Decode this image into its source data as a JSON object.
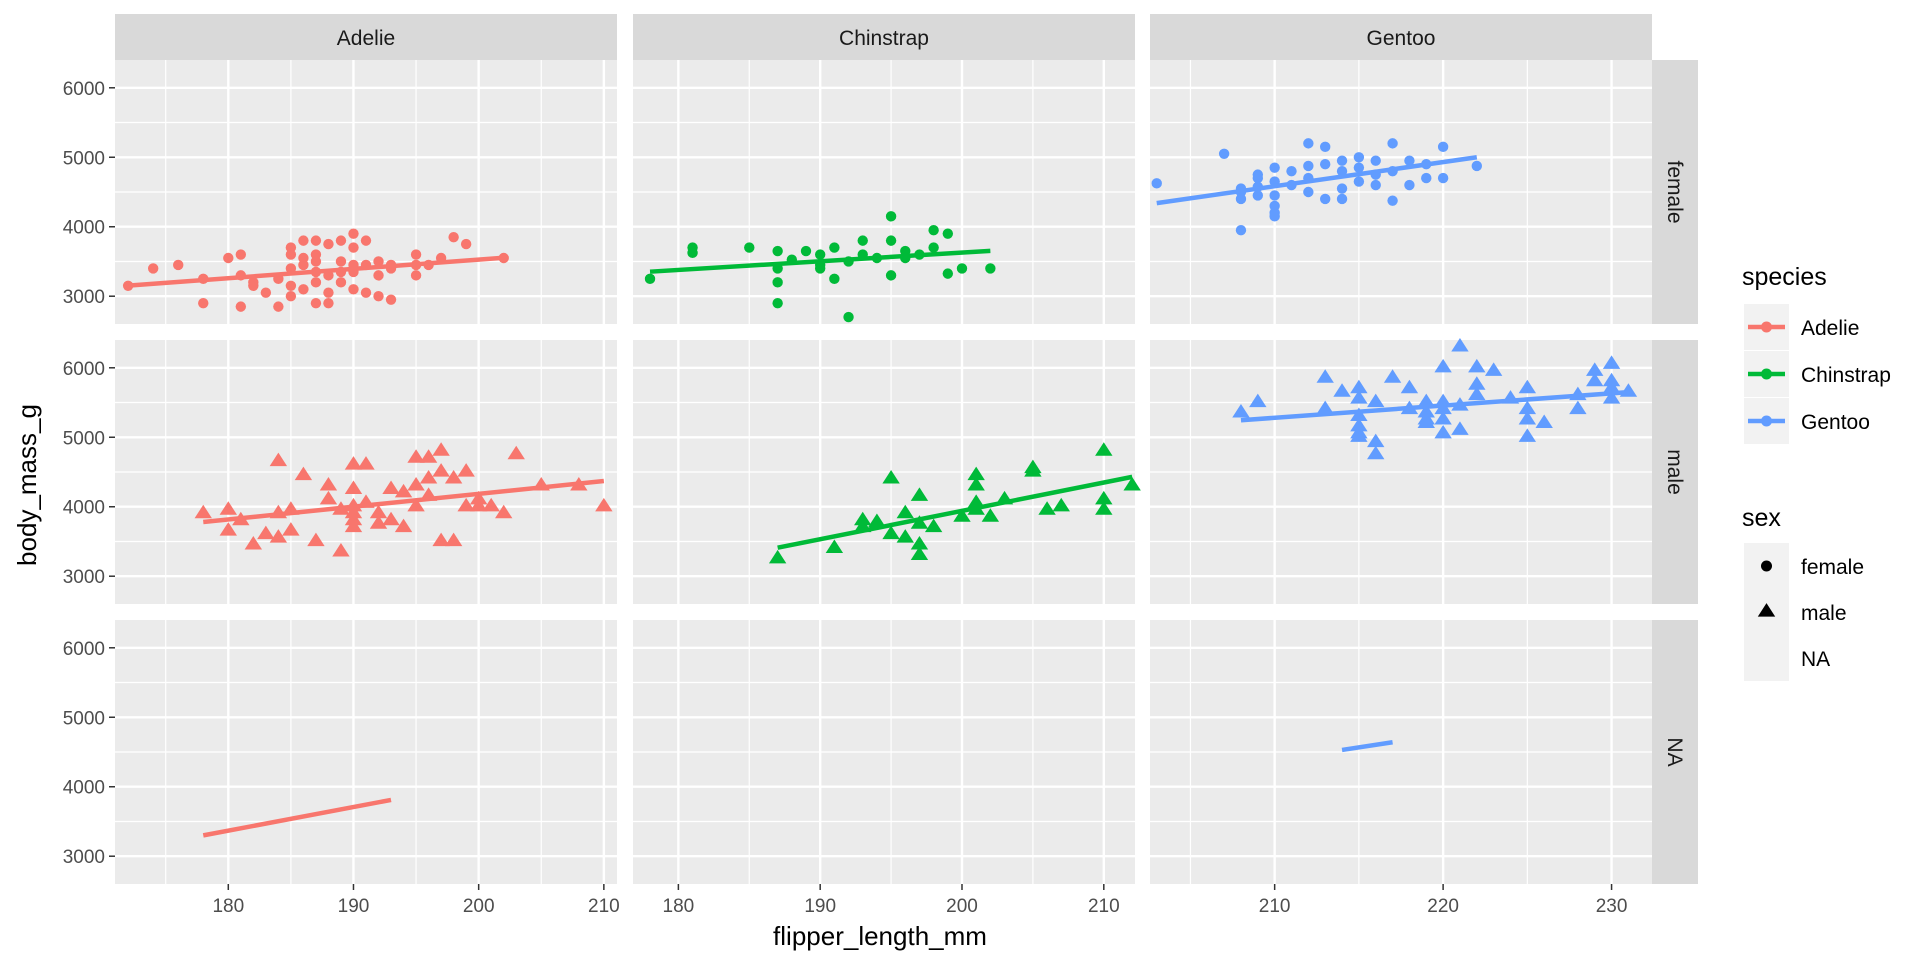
{
  "chart_data": {
    "type": "scatter",
    "facet_rows": [
      "female",
      "male",
      "NA"
    ],
    "facet_cols": [
      "Adelie",
      "Chinstrap",
      "Gentoo"
    ],
    "xlabel": "flipper_length_mm",
    "ylabel": "body_mass_g",
    "y_ticks": [
      "3000",
      "4000",
      "5000",
      "6000"
    ],
    "x_ticks": {
      "Adelie": [
        "180",
        "190",
        "200",
        "210"
      ],
      "Chinstrap": [
        "180",
        "190",
        "200",
        "210"
      ],
      "Gentoo": [
        "210",
        "220",
        "230"
      ]
    },
    "xlim": {
      "Adelie": [
        170.95,
        211.05
      ],
      "Chinstrap": [
        176.8,
        212.2
      ],
      "Gentoo": [
        202.6,
        232.4
      ]
    },
    "ylim": [
      2600,
      6400
    ],
    "grid": true,
    "legend_position": "right",
    "species_colors": {
      "Adelie": "#F8766D",
      "Chinstrap": "#00BA38",
      "Gentoo": "#619CFF"
    },
    "legend": {
      "species": {
        "title": "species",
        "entries": [
          "Adelie",
          "Chinstrap",
          "Gentoo"
        ]
      },
      "sex": {
        "title": "sex",
        "entries": [
          "female",
          "male",
          "NA"
        ]
      }
    },
    "series": [
      {
        "species": "Adelie",
        "sex": "female",
        "points": [
          [
            172,
            3150
          ],
          [
            174,
            3400
          ],
          [
            176,
            3450
          ],
          [
            178,
            3250
          ],
          [
            178,
            2900
          ],
          [
            180,
            3550
          ],
          [
            181,
            3600
          ],
          [
            181,
            3300
          ],
          [
            181,
            2850
          ],
          [
            182,
            3200
          ],
          [
            182,
            3150
          ],
          [
            183,
            3050
          ],
          [
            184,
            3250
          ],
          [
            184,
            2850
          ],
          [
            185,
            3700
          ],
          [
            185,
            3600
          ],
          [
            185,
            3400
          ],
          [
            185,
            3150
          ],
          [
            185,
            3000
          ],
          [
            186,
            3800
          ],
          [
            186,
            3550
          ],
          [
            186,
            3450
          ],
          [
            186,
            3100
          ],
          [
            187,
            3800
          ],
          [
            187,
            3600
          ],
          [
            187,
            3500
          ],
          [
            187,
            3350
          ],
          [
            187,
            3200
          ],
          [
            187,
            2900
          ],
          [
            188,
            3750
          ],
          [
            188,
            3300
          ],
          [
            188,
            3050
          ],
          [
            188,
            2900
          ],
          [
            189,
            3800
          ],
          [
            189,
            3500
          ],
          [
            189,
            3350
          ],
          [
            189,
            3200
          ],
          [
            190,
            3900
          ],
          [
            190,
            3700
          ],
          [
            190,
            3450
          ],
          [
            190,
            3350
          ],
          [
            190,
            3100
          ],
          [
            191,
            3800
          ],
          [
            191,
            3450
          ],
          [
            191,
            3050
          ],
          [
            192,
            3500
          ],
          [
            192,
            3300
          ],
          [
            192,
            3000
          ],
          [
            193,
            3450
          ],
          [
            193,
            3400
          ],
          [
            193,
            2950
          ],
          [
            195,
            3600
          ],
          [
            195,
            3450
          ],
          [
            195,
            3300
          ],
          [
            196,
            3450
          ],
          [
            197,
            3550
          ],
          [
            198,
            3850
          ],
          [
            199,
            3750
          ],
          [
            202,
            3550
          ]
        ],
        "fit": [
          [
            172,
            3153
          ],
          [
            202,
            3553
          ]
        ]
      },
      {
        "species": "Chinstrap",
        "sex": "female",
        "points": [
          [
            178,
            3250
          ],
          [
            181,
            3700
          ],
          [
            181,
            3625
          ],
          [
            185,
            3700
          ],
          [
            187,
            3650
          ],
          [
            187,
            3400
          ],
          [
            187,
            3200
          ],
          [
            187,
            2900
          ],
          [
            188,
            3525
          ],
          [
            189,
            3650
          ],
          [
            190,
            3600
          ],
          [
            190,
            3450
          ],
          [
            190,
            3400
          ],
          [
            191,
            3700
          ],
          [
            191,
            3250
          ],
          [
            192,
            2700
          ],
          [
            192,
            3500
          ],
          [
            193,
            3800
          ],
          [
            193,
            3600
          ],
          [
            194,
            3550
          ],
          [
            195,
            4150
          ],
          [
            195,
            3800
          ],
          [
            195,
            3300
          ],
          [
            196,
            3650
          ],
          [
            196,
            3550
          ],
          [
            197,
            3600
          ],
          [
            198,
            3950
          ],
          [
            198,
            3700
          ],
          [
            199,
            3900
          ],
          [
            199,
            3325
          ],
          [
            200,
            3400
          ],
          [
            202,
            3400
          ]
        ],
        "fit": [
          [
            178,
            3353
          ],
          [
            202,
            3653
          ]
        ]
      },
      {
        "species": "Gentoo",
        "sex": "female",
        "points": [
          [
            203,
            4625
          ],
          [
            207,
            5050
          ],
          [
            208,
            4400
          ],
          [
            208,
            4500
          ],
          [
            208,
            4550
          ],
          [
            208,
            3950
          ],
          [
            209,
            4700
          ],
          [
            209,
            4450
          ],
          [
            209,
            4575
          ],
          [
            209,
            4750
          ],
          [
            210,
            4850
          ],
          [
            210,
            4650
          ],
          [
            210,
            4450
          ],
          [
            210,
            4300
          ],
          [
            210,
            4200
          ],
          [
            210,
            4150
          ],
          [
            211,
            4800
          ],
          [
            211,
            4600
          ],
          [
            212,
            5200
          ],
          [
            212,
            4875
          ],
          [
            212,
            4700
          ],
          [
            212,
            4500
          ],
          [
            213,
            5150
          ],
          [
            213,
            4900
          ],
          [
            213,
            4400
          ],
          [
            214,
            4950
          ],
          [
            214,
            4800
          ],
          [
            214,
            4550
          ],
          [
            214,
            4400
          ],
          [
            215,
            5000
          ],
          [
            215,
            4850
          ],
          [
            215,
            4650
          ],
          [
            216,
            4950
          ],
          [
            216,
            4750
          ],
          [
            216,
            4600
          ],
          [
            217,
            5200
          ],
          [
            217,
            4800
          ],
          [
            217,
            4375
          ],
          [
            218,
            4950
          ],
          [
            218,
            4600
          ],
          [
            219,
            4900
          ],
          [
            219,
            4700
          ],
          [
            220,
            5150
          ],
          [
            220,
            4700
          ],
          [
            222,
            4875
          ]
        ],
        "fit": [
          [
            203,
            4340
          ],
          [
            222,
            5000
          ]
        ]
      },
      {
        "species": "Adelie",
        "sex": "male",
        "points": [
          [
            178,
            3900
          ],
          [
            180,
            3950
          ],
          [
            180,
            3650
          ],
          [
            181,
            3800
          ],
          [
            182,
            3450
          ],
          [
            183,
            3600
          ],
          [
            184,
            4650
          ],
          [
            184,
            3900
          ],
          [
            184,
            3550
          ],
          [
            185,
            3950
          ],
          [
            185,
            3650
          ],
          [
            186,
            4450
          ],
          [
            187,
            3500
          ],
          [
            188,
            4300
          ],
          [
            188,
            4100
          ],
          [
            189,
            3350
          ],
          [
            189,
            3950
          ],
          [
            190,
            4600
          ],
          [
            190,
            4250
          ],
          [
            190,
            4000
          ],
          [
            190,
            3900
          ],
          [
            190,
            3800
          ],
          [
            190,
            3700
          ],
          [
            191,
            4600
          ],
          [
            191,
            4050
          ],
          [
            192,
            3900
          ],
          [
            192,
            3750
          ],
          [
            193,
            4250
          ],
          [
            193,
            3800
          ],
          [
            194,
            4200
          ],
          [
            194,
            3700
          ],
          [
            195,
            4700
          ],
          [
            195,
            4300
          ],
          [
            195,
            4000
          ],
          [
            196,
            4700
          ],
          [
            196,
            4400
          ],
          [
            196,
            4150
          ],
          [
            197,
            4800
          ],
          [
            197,
            4500
          ],
          [
            197,
            3500
          ],
          [
            198,
            4400
          ],
          [
            198,
            3500
          ],
          [
            199,
            4500
          ],
          [
            199,
            4000
          ],
          [
            200,
            4100
          ],
          [
            200,
            4000
          ],
          [
            201,
            4000
          ],
          [
            202,
            3900
          ],
          [
            203,
            4750
          ],
          [
            205,
            4300
          ],
          [
            208,
            4300
          ],
          [
            210,
            4000
          ]
        ],
        "fit": [
          [
            178,
            3780
          ],
          [
            210,
            4370
          ]
        ]
      },
      {
        "species": "Chinstrap",
        "sex": "male",
        "points": [
          [
            187,
            3250
          ],
          [
            191,
            3400
          ],
          [
            193,
            3700
          ],
          [
            193,
            3800
          ],
          [
            194,
            3775
          ],
          [
            195,
            4400
          ],
          [
            195,
            3600
          ],
          [
            196,
            3900
          ],
          [
            196,
            3550
          ],
          [
            197,
            4150
          ],
          [
            197,
            3450
          ],
          [
            197,
            3300
          ],
          [
            197,
            3750
          ],
          [
            198,
            3700
          ],
          [
            200,
            3850
          ],
          [
            201,
            4450
          ],
          [
            201,
            4300
          ],
          [
            201,
            4050
          ],
          [
            201,
            3950
          ],
          [
            202,
            3850
          ],
          [
            203,
            4100
          ],
          [
            205,
            4550
          ],
          [
            205,
            4500
          ],
          [
            206,
            3950
          ],
          [
            207,
            4000
          ],
          [
            210,
            4800
          ],
          [
            210,
            4100
          ],
          [
            210,
            3950
          ],
          [
            212,
            4300
          ]
        ],
        "fit": [
          [
            187,
            3410
          ],
          [
            212,
            4430
          ]
        ]
      },
      {
        "species": "Gentoo",
        "sex": "male",
        "points": [
          [
            208,
            5350
          ],
          [
            209,
            5500
          ],
          [
            213,
            5850
          ],
          [
            213,
            5400
          ],
          [
            214,
            5650
          ],
          [
            215,
            5700
          ],
          [
            215,
            5550
          ],
          [
            215,
            5300
          ],
          [
            215,
            5150
          ],
          [
            215,
            5050
          ],
          [
            215,
            5000
          ],
          [
            216,
            4925
          ],
          [
            216,
            4750
          ],
          [
            216,
            5500
          ],
          [
            217,
            5850
          ],
          [
            218,
            5700
          ],
          [
            218,
            5400
          ],
          [
            219,
            5500
          ],
          [
            219,
            5350
          ],
          [
            219,
            5250
          ],
          [
            219,
            5200
          ],
          [
            220,
            6000
          ],
          [
            220,
            5500
          ],
          [
            220,
            5400
          ],
          [
            220,
            5250
          ],
          [
            220,
            5050
          ],
          [
            221,
            6300
          ],
          [
            221,
            5450
          ],
          [
            221,
            5100
          ],
          [
            222,
            6000
          ],
          [
            222,
            5750
          ],
          [
            222,
            5600
          ],
          [
            223,
            5950
          ],
          [
            224,
            5550
          ],
          [
            225,
            5700
          ],
          [
            225,
            5400
          ],
          [
            225,
            5250
          ],
          [
            225,
            5000
          ],
          [
            226,
            5200
          ],
          [
            228,
            5600
          ],
          [
            228,
            5400
          ],
          [
            229,
            5950
          ],
          [
            229,
            5800
          ],
          [
            230,
            6050
          ],
          [
            230,
            5800
          ],
          [
            230,
            5700
          ],
          [
            230,
            5550
          ],
          [
            231,
            5650
          ]
        ],
        "fit": [
          [
            208,
            5245
          ],
          [
            231,
            5650
          ]
        ]
      },
      {
        "species": "Adelie",
        "sex": "NA",
        "points": [],
        "fit": [
          [
            178,
            3300
          ],
          [
            193,
            3810
          ]
        ]
      },
      {
        "species": "Chinstrap",
        "sex": "NA",
        "points": [],
        "fit": []
      },
      {
        "species": "Gentoo",
        "sex": "NA",
        "points": [],
        "fit": [
          [
            214,
            4530
          ],
          [
            217,
            4640
          ]
        ]
      }
    ]
  }
}
